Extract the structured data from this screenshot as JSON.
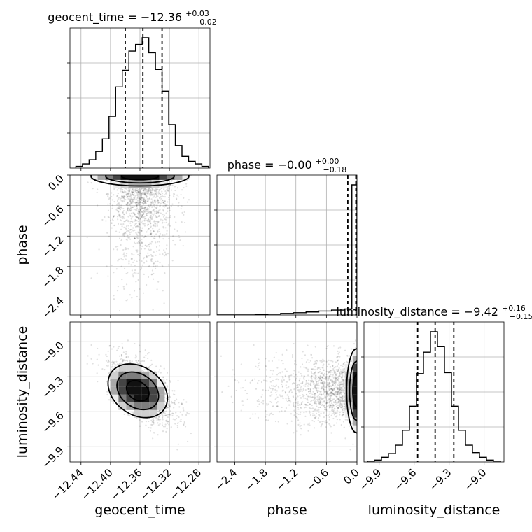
{
  "chart_data": {
    "type": "corner",
    "parameters": [
      "geocent_time",
      "phase",
      "luminosity_distance"
    ],
    "titles": [
      {
        "name": "geocent_time",
        "median": "−12.36",
        "plus": "+0.03",
        "minus": "−0.02"
      },
      {
        "name": "phase",
        "median": "−0.00",
        "plus": "+0.00",
        "minus": "−0.18"
      },
      {
        "name": "luminosity_distance",
        "median": "−9.42",
        "plus": "+0.16",
        "minus": "−0.15"
      }
    ],
    "axis_labels": {
      "x": [
        "geocent_time",
        "phase",
        "luminosity_distance"
      ],
      "y": [
        "phase",
        "luminosity_distance"
      ]
    },
    "ranges": {
      "geocent_time": [
        -12.455,
        -12.265
      ],
      "phase": [
        -2.75,
        0.0
      ],
      "luminosity_distance": [
        -10.03,
        -8.83
      ]
    },
    "tick_labels": {
      "geocent_time": [
        "−12.44",
        "−12.40",
        "−12.36",
        "−12.32",
        "−12.28"
      ],
      "phase": [
        "−2.4",
        "−1.8",
        "−1.2",
        "−0.6",
        "0.0"
      ],
      "luminosity_distance": [
        "−9.9",
        "−9.6",
        "−9.3",
        "−9.0"
      ]
    },
    "tick_values": {
      "geocent_time": [
        -12.44,
        -12.4,
        -12.36,
        -12.32,
        -12.28
      ],
      "phase": [
        -2.4,
        -1.8,
        -1.2,
        -0.6,
        0.0
      ],
      "luminosity_distance": [
        -9.9,
        -9.6,
        -9.3,
        -9.0
      ]
    },
    "quantiles": {
      "geocent_time": [
        -12.38,
        -12.356,
        -12.33
      ],
      "phase": [
        -0.18,
        0.0,
        0.0
      ],
      "luminosity_distance": [
        -9.57,
        -9.42,
        -9.26
      ]
    },
    "histograms": {
      "geocent_time": {
        "bins": [
          -12.447,
          -12.438,
          -12.429,
          -12.42,
          -12.411,
          -12.402,
          -12.393,
          -12.384,
          -12.375,
          -12.366,
          -12.357,
          -12.348,
          -12.339,
          -12.33,
          -12.321,
          -12.312,
          -12.303,
          -12.294,
          -12.285,
          -12.276,
          -12.267
        ],
        "counts": [
          2,
          5,
          10,
          20,
          35,
          62,
          97,
          117,
          140,
          148,
          156,
          138,
          118,
          92,
          52,
          27,
          14,
          8,
          5,
          2
        ]
      },
      "phase": {
        "bins": [
          -2.75,
          -2.5,
          -2.25,
          -2.0,
          -1.75,
          -1.5,
          -1.25,
          -1.0,
          -0.75,
          -0.5,
          -0.25,
          -0.1,
          0.0
        ],
        "counts": [
          0,
          0,
          0,
          0.2,
          0.5,
          0.8,
          1.2,
          1.6,
          2.1,
          2.6,
          3.2,
          70
        ]
      },
      "luminosity_distance": {
        "bins": [
          -10.0,
          -9.94,
          -9.88,
          -9.82,
          -9.76,
          -9.7,
          -9.64,
          -9.58,
          -9.52,
          -9.46,
          -9.4,
          -9.34,
          -9.28,
          -9.22,
          -9.16,
          -9.1,
          -9.04,
          -8.98,
          -8.92,
          -8.86
        ],
        "counts": [
          1,
          2,
          5,
          9,
          18,
          34,
          60,
          95,
          118,
          140,
          124,
          96,
          60,
          34,
          18,
          10,
          5,
          2,
          1
        ]
      }
    },
    "scatter_samples": 1500,
    "contour_levels": [
      "0.39",
      "0.86",
      "0.99"
    ],
    "grid": true
  }
}
